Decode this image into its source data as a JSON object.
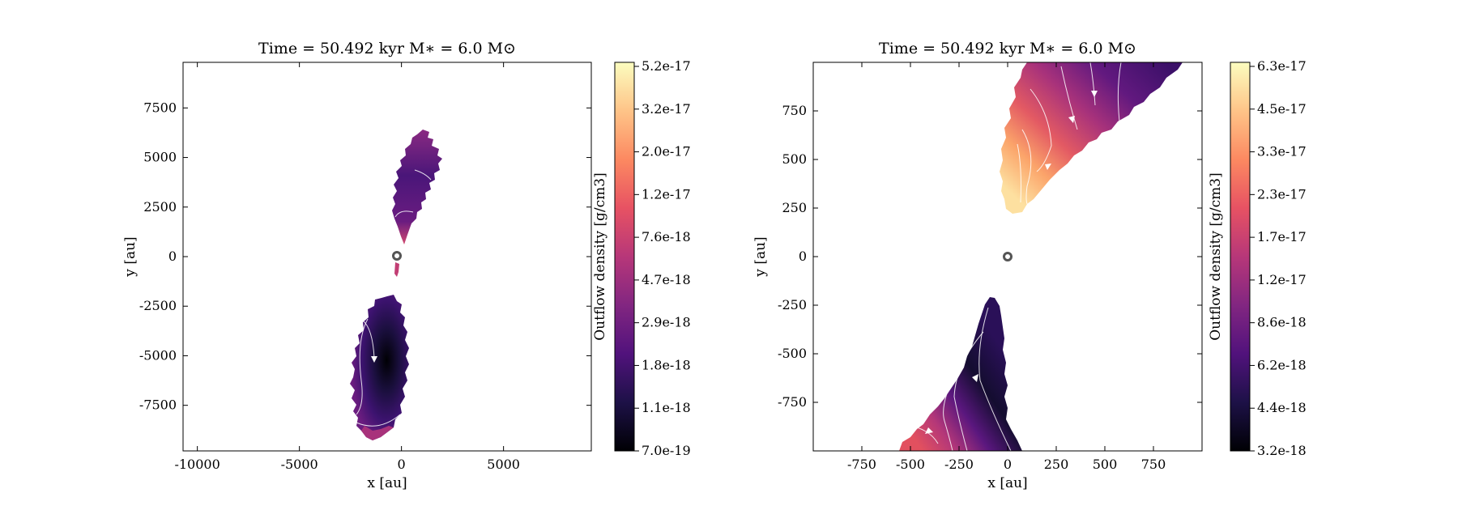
{
  "chart_data": [
    {
      "type": "heatmap",
      "title": "Time = 50.492 kyr    M$_*$ = 6.0 M$_\\odot$",
      "title_display": "Time = 50.492 kyr    M∗ = 6.0 M⊙",
      "xlabel": "x [au]",
      "ylabel": "y [au]",
      "xlim": [
        -10700,
        9300
      ],
      "ylim": [
        -9800,
        9800
      ],
      "xticks": [
        -10000,
        -5000,
        0,
        5000
      ],
      "yticks": [
        -7500,
        -5000,
        -2500,
        0,
        2500,
        5000,
        7500
      ],
      "colorbar_label": "Outflow density [g/cm3]",
      "colorbar_ticks": [
        "7.0e-19",
        "1.1e-18",
        "1.8e-18",
        "2.9e-18",
        "4.7e-18",
        "7.6e-18",
        "1.2e-17",
        "2.0e-17",
        "3.2e-17",
        "5.2e-17"
      ],
      "colormap": "magma",
      "star_marker": [
        0,
        0
      ]
    },
    {
      "type": "heatmap",
      "title": "Time = 50.492 kyr    M$_*$ = 6.0 M$_\\odot$",
      "title_display": "Time = 50.492 kyr    M∗ = 6.0 M⊙",
      "xlabel": "x [au]",
      "ylabel": "y [au]",
      "xlim": [
        -1000,
        1000
      ],
      "ylim": [
        -1000,
        1000
      ],
      "xticks": [
        -750,
        -500,
        -250,
        0,
        250,
        500,
        750
      ],
      "yticks": [
        -750,
        -500,
        -250,
        0,
        250,
        500,
        750
      ],
      "colorbar_label": "Outflow density [g/cm3]",
      "colorbar_ticks": [
        "3.2e-18",
        "4.4e-18",
        "6.2e-18",
        "8.6e-18",
        "1.2e-17",
        "1.7e-17",
        "2.3e-17",
        "3.3e-17",
        "4.5e-17",
        "6.3e-17"
      ],
      "colormap": "magma",
      "star_marker": [
        0,
        0
      ]
    }
  ],
  "colors": {
    "magma": [
      "#000004",
      "#1d1147",
      "#51127c",
      "#822681",
      "#b73779",
      "#e75263",
      "#fc8961",
      "#fec488",
      "#fcfdbf"
    ],
    "stream": "#ffffff",
    "star": "#555555"
  }
}
